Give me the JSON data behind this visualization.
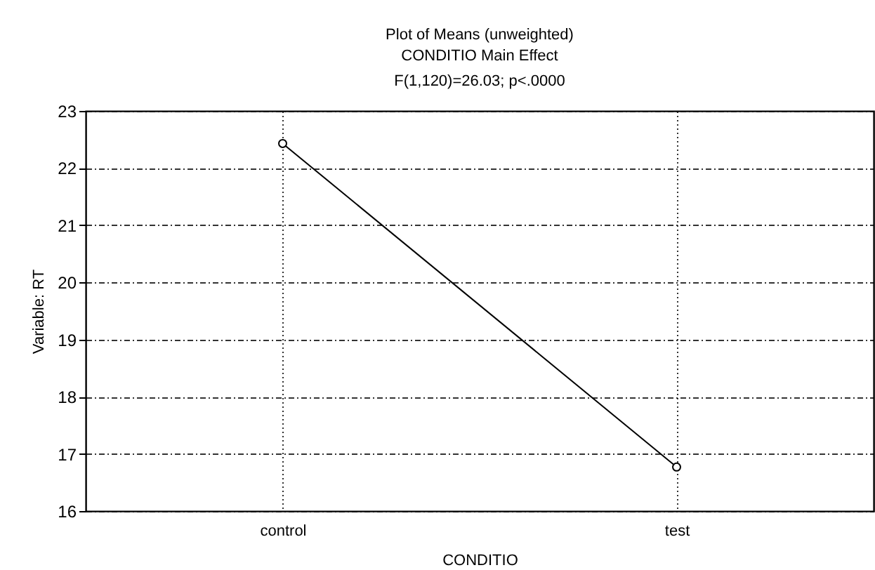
{
  "chart_data": {
    "type": "line",
    "title": "Plot of Means (unweighted)",
    "subtitle": "CONDITIO Main Effect",
    "annotations": [
      "F(1,120)=26.03; p<.0000"
    ],
    "xlabel": "CONDITIO",
    "ylabel": "Variable: RT",
    "categories": [
      "control",
      "test"
    ],
    "series": [
      {
        "color": "#000000",
        "values": [
          22.43,
          16.77
        ]
      }
    ],
    "ylim": [
      16,
      23
    ],
    "yticks": [
      16,
      17,
      18,
      19,
      20,
      21,
      22,
      23
    ],
    "grid": true,
    "marker": "circle",
    "line_style": "solid"
  }
}
